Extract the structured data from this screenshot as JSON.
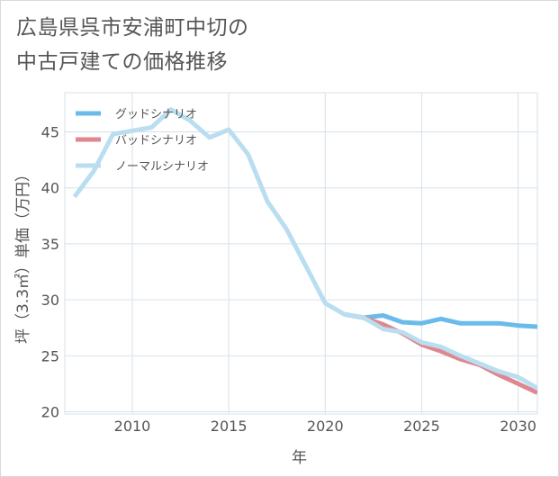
{
  "title_lines": [
    "広島県呉市安浦町中切の",
    "中古戸建ての価格推移"
  ],
  "chart_data": {
    "type": "line",
    "title": "広島県呉市安浦町中切の中古戸建ての価格推移",
    "xlabel": "年",
    "ylabel": "坪（3.3㎡）単価（万円）",
    "xlim": [
      2006.5,
      2031
    ],
    "ylim": [
      19.8,
      48.5
    ],
    "xticks": [
      2010,
      2015,
      2020,
      2025,
      2030
    ],
    "yticks": [
      20,
      25,
      30,
      35,
      40,
      45
    ],
    "grid": true,
    "legend_position": "top-left",
    "series": [
      {
        "name": "グッドシナリオ",
        "color": "#6bbbea",
        "x": [
          2021,
          2022,
          2023,
          2024,
          2025,
          2026,
          2027,
          2028,
          2029,
          2030,
          2031
        ],
        "y": [
          28.7,
          28.4,
          28.6,
          28.0,
          27.9,
          28.3,
          27.9,
          27.9,
          27.9,
          27.7,
          27.6
        ]
      },
      {
        "name": "バッドシナリオ",
        "color": "#e0868f",
        "x": [
          2021,
          2022,
          2023,
          2024,
          2025,
          2026,
          2027,
          2028,
          2029,
          2030,
          2031
        ],
        "y": [
          28.7,
          28.4,
          27.8,
          27.0,
          26.0,
          25.4,
          24.7,
          24.2,
          23.3,
          22.5,
          21.7
        ]
      },
      {
        "name": "ノーマルシナリオ",
        "color": "#b9def0",
        "x": [
          2007,
          2008,
          2009,
          2010,
          2011,
          2012,
          2013,
          2014,
          2015,
          2016,
          2017,
          2018,
          2019,
          2020,
          2021,
          2022,
          2023,
          2024,
          2025,
          2026,
          2027,
          2028,
          2029,
          2030,
          2031
        ],
        "y": [
          39.2,
          41.5,
          44.8,
          45.1,
          45.4,
          47.0,
          46.0,
          44.5,
          45.2,
          43.0,
          38.8,
          36.3,
          33.0,
          29.7,
          28.7,
          28.4,
          27.4,
          27.1,
          26.2,
          25.8,
          25.0,
          24.3,
          23.6,
          23.1,
          22.1
        ]
      }
    ]
  }
}
